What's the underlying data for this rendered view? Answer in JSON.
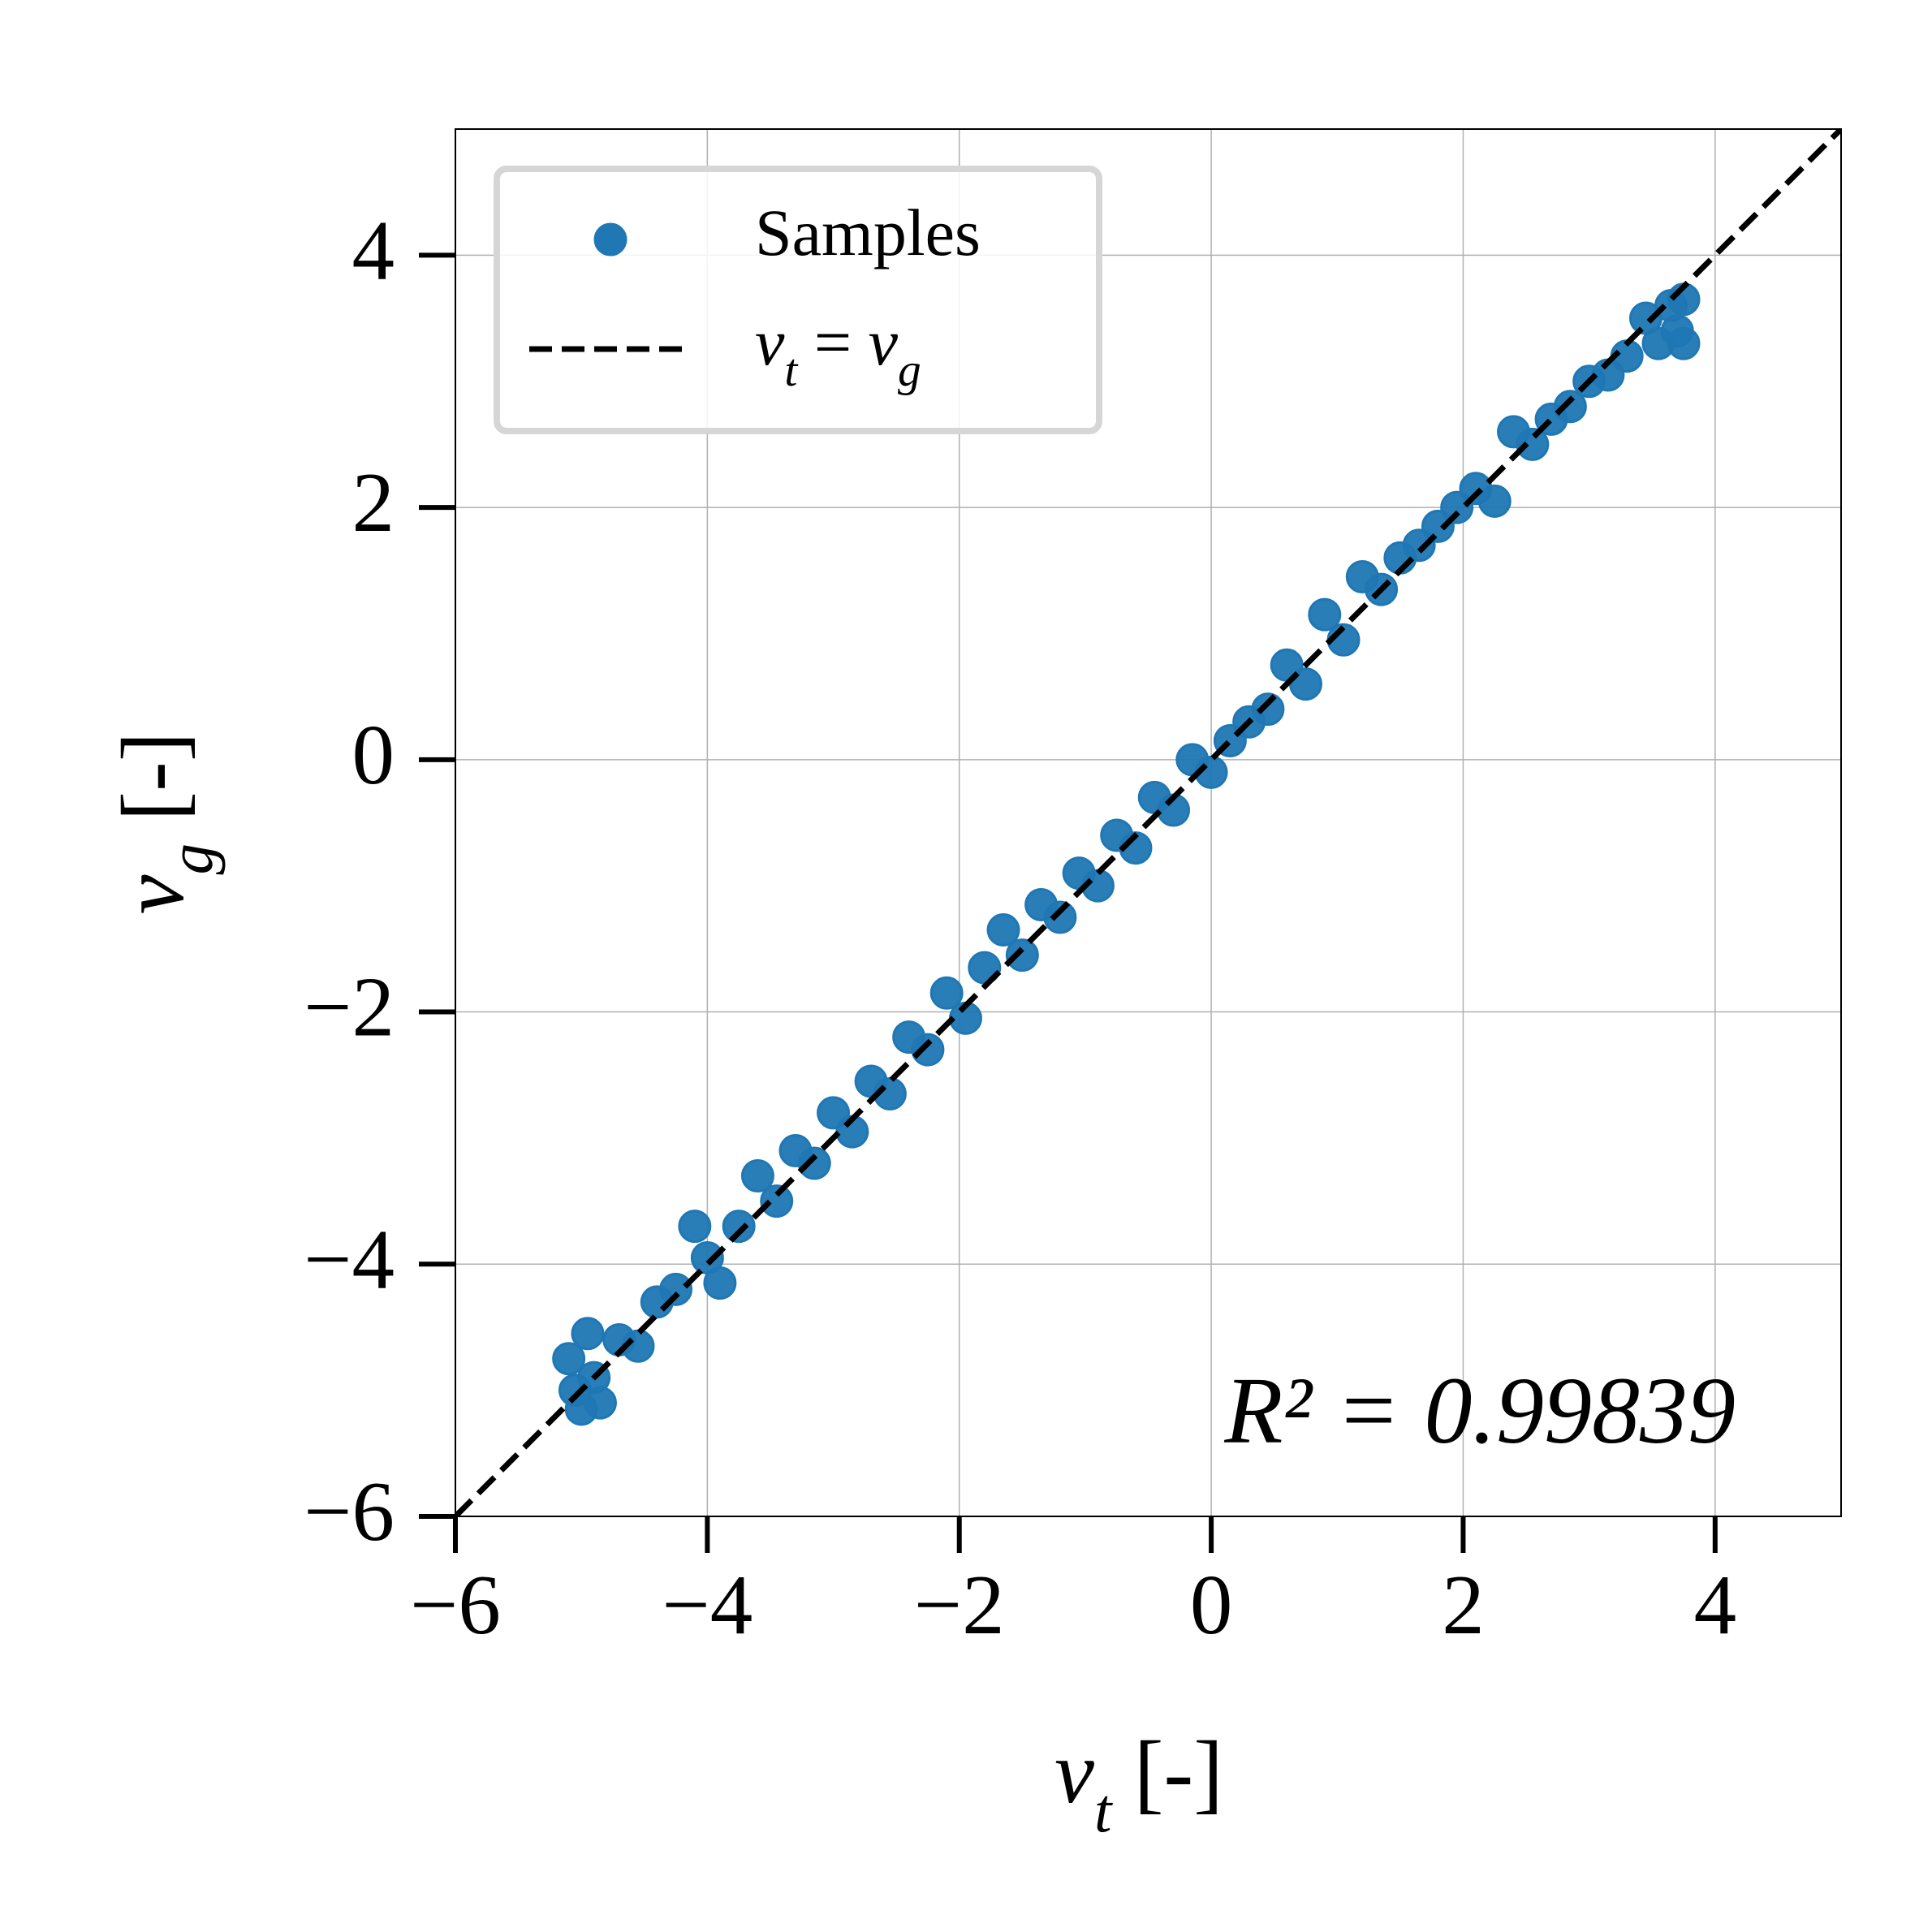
{
  "chart_data": {
    "type": "scatter",
    "x_label": "νt [-]",
    "y_label": "νg [-]",
    "annotation": "R² = 0.99839",
    "xlim": [
      -6,
      5
    ],
    "ylim": [
      -6,
      5
    ],
    "xticks": [
      {
        "value": -6,
        "label": "−6"
      },
      {
        "value": -4,
        "label": "−4"
      },
      {
        "value": -2,
        "label": "−2"
      },
      0,
      2,
      4
    ],
    "yticks": [
      {
        "value": -6,
        "label": "−6"
      },
      {
        "value": -4,
        "label": "−4"
      },
      {
        "value": -2,
        "label": "−2"
      },
      0,
      2,
      4
    ],
    "grid": true,
    "legend": "upper left",
    "series": [
      {
        "name": "Samples",
        "color": "#1f77b4",
        "mark": "point",
        "x": [
          -5.1,
          -5.05,
          -5.0,
          -4.95,
          -4.9,
          -4.85,
          -4.7,
          -4.55,
          -4.4,
          -4.25,
          -4.1,
          -4.0,
          -3.9,
          -3.75,
          -3.6,
          -3.45,
          -3.3,
          -3.15,
          -3.0,
          -2.85,
          -2.7,
          -2.55,
          -2.4,
          -2.25,
          -2.1,
          -1.95,
          -1.8,
          -1.65,
          -1.5,
          -1.35,
          -1.2,
          -1.05,
          -0.9,
          -0.75,
          -0.6,
          -0.45,
          -0.3,
          -0.15,
          0,
          0.15,
          0.3,
          0.45,
          0.6,
          0.75,
          0.9,
          1.05,
          1.2,
          1.35,
          1.5,
          1.65,
          1.8,
          1.95,
          2.1,
          2.25,
          2.4,
          2.55,
          2.7,
          2.85,
          3.0,
          3.15,
          3.3,
          3.45,
          3.55,
          3.65,
          3.7,
          3.75,
          3.75
        ],
        "y": [
          -4.75,
          -5.0,
          -5.15,
          -4.55,
          -4.9,
          -5.1,
          -4.6,
          -4.65,
          -4.3,
          -4.2,
          -3.7,
          -3.95,
          -4.15,
          -3.7,
          -3.3,
          -3.5,
          -3.1,
          -3.2,
          -2.8,
          -2.95,
          -2.55,
          -2.65,
          -2.2,
          -2.3,
          -1.85,
          -2.05,
          -1.65,
          -1.35,
          -1.55,
          -1.15,
          -1.25,
          -0.9,
          -1.0,
          -0.6,
          -0.7,
          -0.3,
          -0.4,
          0.0,
          -0.1,
          0.15,
          0.3,
          0.4,
          0.75,
          0.6,
          1.15,
          0.95,
          1.45,
          1.35,
          1.6,
          1.7,
          1.85,
          2.0,
          2.15,
          2.05,
          2.6,
          2.5,
          2.7,
          2.8,
          3.0,
          3.05,
          3.2,
          3.5,
          3.3,
          3.6,
          3.4,
          3.65,
          3.3
        ]
      },
      {
        "name": "νt = νg",
        "color": "#000000",
        "mark": "dashed-line",
        "x": [
          -6,
          5
        ],
        "y": [
          -6,
          5
        ]
      }
    ]
  }
}
